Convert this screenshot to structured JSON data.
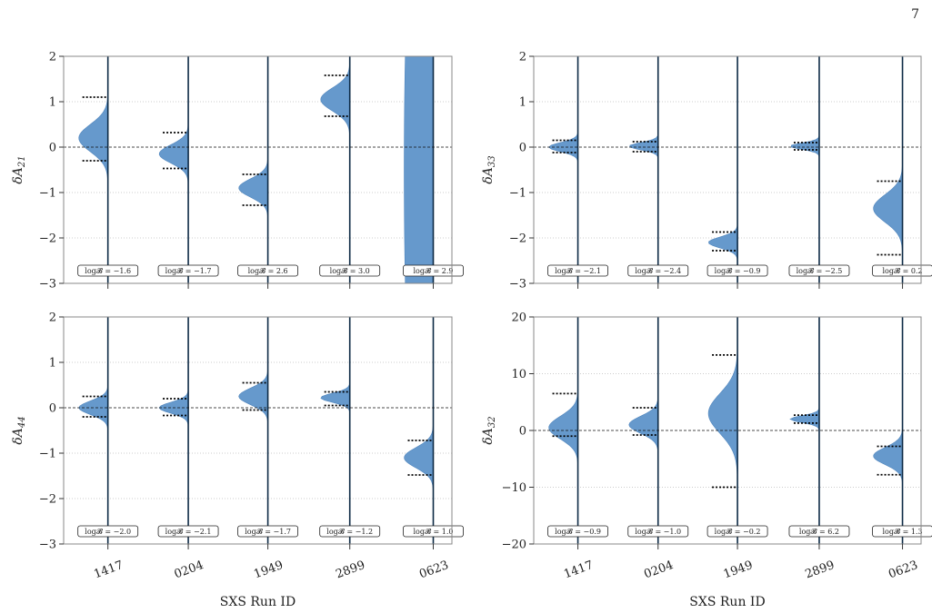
{
  "page_number": "7",
  "colors": {
    "violin": "#6699cc",
    "violin_edge": "#4f85bd",
    "line": "#0d2a45",
    "frame": "#888888",
    "grid": "#9a9a9a"
  },
  "chart_data": [
    {
      "type": "violin",
      "ylabel": "δA21",
      "ylabel_base": "δA",
      "ylabel_sub": "21",
      "xlabel": "",
      "categories": [
        "1417",
        "0204",
        "1949",
        "2899",
        "0623"
      ],
      "ylim": [
        -3,
        2
      ],
      "yticks": [
        -3,
        -2,
        -1,
        0,
        1,
        2
      ],
      "ytick_labels": [
        "−3",
        "−2",
        "−1",
        "0",
        "1",
        "2"
      ],
      "show_xticklabels": false,
      "reference_line": 0,
      "grid": "horizontal-dotted",
      "violins": [
        {
          "center": 0.2,
          "sigma": 0.3,
          "interval": [
            -0.3,
            1.1
          ],
          "bayes": "log𝓑 = −1.6"
        },
        {
          "center": -0.15,
          "sigma": 0.2,
          "interval": [
            -0.47,
            0.32
          ],
          "bayes": "log𝓑 = −1.7"
        },
        {
          "center": -0.9,
          "sigma": 0.2,
          "interval": [
            -1.28,
            -0.6
          ],
          "bayes": "log𝓑 = 2.6"
        },
        {
          "center": 1.05,
          "sigma": 0.25,
          "interval": [
            0.68,
            1.58
          ],
          "bayes": "log𝓑 = 3.0"
        },
        {
          "center": -0.5,
          "sigma": 9.0,
          "interval": [],
          "bayes": "log𝓑 = 2.9"
        }
      ]
    },
    {
      "type": "violin",
      "ylabel": "δA33",
      "ylabel_base": "δA",
      "ylabel_sub": "33",
      "xlabel": "",
      "categories": [
        "1417",
        "0204",
        "1949",
        "2899",
        "0623"
      ],
      "ylim": [
        -3,
        2
      ],
      "yticks": [
        -3,
        -2,
        -1,
        0,
        1,
        2
      ],
      "ytick_labels": [
        "−3",
        "−2",
        "−1",
        "0",
        "1",
        "2"
      ],
      "show_xticklabels": false,
      "reference_line": 0,
      "grid": "horizontal-dotted",
      "violins": [
        {
          "center": 0.0,
          "sigma": 0.1,
          "interval": [
            -0.12,
            0.15
          ],
          "bayes": "log𝓑 = −2.1"
        },
        {
          "center": 0.02,
          "sigma": 0.08,
          "interval": [
            -0.1,
            0.12
          ],
          "bayes": "log𝓑 = −2.4"
        },
        {
          "center": -2.1,
          "sigma": 0.12,
          "interval": [
            -2.28,
            -1.87
          ],
          "bayes": "log𝓑 = −0.9"
        },
        {
          "center": 0.02,
          "sigma": 0.07,
          "interval": [
            -0.06,
            0.1
          ],
          "bayes": "log𝓑 = −2.5"
        },
        {
          "center": -1.35,
          "sigma": 0.3,
          "interval": [
            -2.37,
            -0.75
          ],
          "bayes": "log𝓑 = 0.2"
        }
      ]
    },
    {
      "type": "violin",
      "ylabel": "δA44",
      "ylabel_base": "δA",
      "ylabel_sub": "44",
      "xlabel": "SXS Run ID",
      "categories": [
        "1417",
        "0204",
        "1949",
        "2899",
        "0623"
      ],
      "ylim": [
        -3,
        2
      ],
      "yticks": [
        -3,
        -2,
        -1,
        0,
        1,
        2
      ],
      "ytick_labels": [
        "−3",
        "−2",
        "−1",
        "0",
        "1",
        "2"
      ],
      "show_xticklabels": true,
      "reference_line": 0,
      "grid": "horizontal-dotted",
      "violins": [
        {
          "center": 0.0,
          "sigma": 0.15,
          "interval": [
            -0.2,
            0.25
          ],
          "bayes": "log𝓑 = −2.0"
        },
        {
          "center": 0.0,
          "sigma": 0.12,
          "interval": [
            -0.17,
            0.2
          ],
          "bayes": "log𝓑 = −2.1"
        },
        {
          "center": 0.25,
          "sigma": 0.18,
          "interval": [
            -0.05,
            0.55
          ],
          "bayes": "log𝓑 = −1.7"
        },
        {
          "center": 0.22,
          "sigma": 0.1,
          "interval": [
            0.05,
            0.35
          ],
          "bayes": "log𝓑 = −1.2"
        },
        {
          "center": -1.1,
          "sigma": 0.22,
          "interval": [
            -1.48,
            -0.72
          ],
          "bayes": "log𝓑 = 1.0"
        }
      ]
    },
    {
      "type": "violin",
      "ylabel": "δA32",
      "ylabel_base": "δA",
      "ylabel_sub": "32",
      "xlabel": "SXS Run ID",
      "categories": [
        "1417",
        "0204",
        "1949",
        "2899",
        "0623"
      ],
      "ylim": [
        -20,
        20
      ],
      "yticks": [
        -20,
        -10,
        0,
        10,
        20
      ],
      "ytick_labels": [
        "−20",
        "−10",
        "0",
        "10",
        "20"
      ],
      "show_xticklabels": true,
      "reference_line": 0,
      "grid": "horizontal-dotted",
      "violins": [
        {
          "center": 0.5,
          "sigma": 2.0,
          "interval": [
            -1.0,
            6.5
          ],
          "bayes": "log𝓑 = −0.9"
        },
        {
          "center": 1.0,
          "sigma": 1.5,
          "interval": [
            -0.8,
            4.0
          ],
          "bayes": "log𝓑 = −1.0"
        },
        {
          "center": 3.0,
          "sigma": 3.5,
          "interval": [
            -10.0,
            13.3
          ],
          "bayes": "log𝓑 = −0.2"
        },
        {
          "center": 2.0,
          "sigma": 0.6,
          "interval": [
            1.3,
            2.7
          ],
          "bayes": "log𝓑 = 6.2"
        },
        {
          "center": -4.5,
          "sigma": 1.5,
          "interval": [
            -7.8,
            -2.8
          ],
          "bayes": "log𝓑 = 1.3"
        }
      ]
    }
  ]
}
